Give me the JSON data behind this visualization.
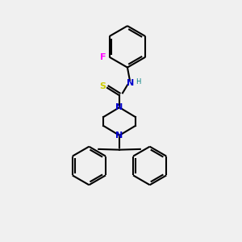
{
  "background_color": "#f0f0f0",
  "bond_color": "#000000",
  "bond_width": 1.5,
  "atom_colors": {
    "N": "#0000cc",
    "S": "#cccc00",
    "F": "#ff00ff",
    "H": "#008080",
    "C": "#000000"
  },
  "font_size_atom": 8,
  "font_size_H": 7
}
